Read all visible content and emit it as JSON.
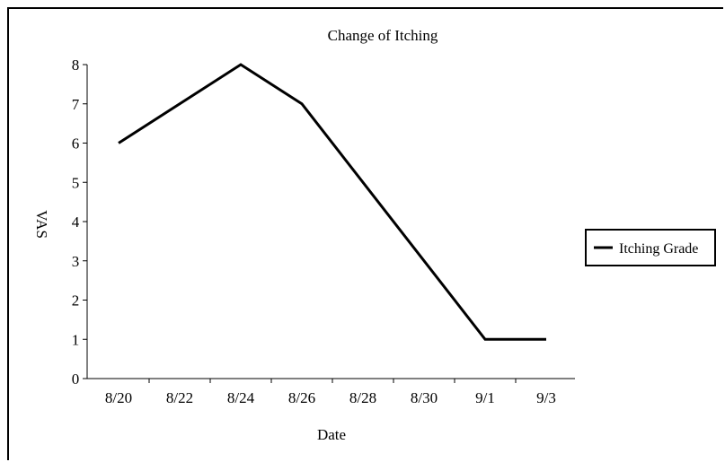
{
  "chart_data": {
    "type": "line",
    "title": "Change of Itching",
    "xlabel": "Date",
    "ylabel": "VAS",
    "categories": [
      "8/20",
      "8/22",
      "8/24",
      "8/26",
      "8/28",
      "8/30",
      "9/1",
      "9/3"
    ],
    "x_points": [
      0,
      2,
      4,
      6,
      10,
      14
    ],
    "series": [
      {
        "name": "Itching Grade",
        "x": [
          "8/20",
          "8/24",
          "8/26",
          "9/1",
          "9/3"
        ],
        "values": [
          6,
          8,
          7,
          1,
          1
        ]
      }
    ],
    "ylim": [
      0,
      8
    ],
    "yticks": [
      "0",
      "1",
      "2",
      "3",
      "4",
      "5",
      "6",
      "7",
      "8"
    ],
    "grid": false,
    "legend_position": "right",
    "line_color": "#000000"
  }
}
